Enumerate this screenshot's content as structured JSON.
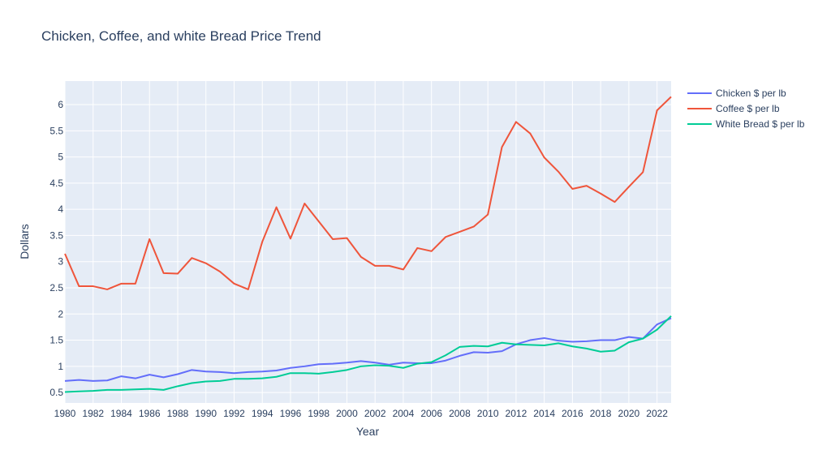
{
  "chart_data": {
    "type": "line",
    "title": "Chicken, Coffee, and white Bread Price Trend",
    "xlabel": "Year",
    "ylabel": "Dollars",
    "xlim": [
      1980,
      2023
    ],
    "ylim": [
      0.3,
      6.45
    ],
    "x_ticks": [
      1980,
      1982,
      1984,
      1986,
      1988,
      1990,
      1992,
      1994,
      1996,
      1998,
      2000,
      2002,
      2004,
      2006,
      2008,
      2010,
      2012,
      2014,
      2016,
      2018,
      2020,
      2022
    ],
    "y_ticks": [
      0.5,
      1,
      1.5,
      2,
      2.5,
      3,
      3.5,
      4,
      4.5,
      5,
      5.5,
      6
    ],
    "grid": true,
    "legend_position": "right",
    "x": [
      1980,
      1981,
      1982,
      1983,
      1984,
      1985,
      1986,
      1987,
      1988,
      1989,
      1990,
      1991,
      1992,
      1993,
      1994,
      1995,
      1996,
      1997,
      1998,
      1999,
      2000,
      2001,
      2002,
      2003,
      2004,
      2005,
      2006,
      2007,
      2008,
      2009,
      2010,
      2011,
      2012,
      2013,
      2014,
      2015,
      2016,
      2017,
      2018,
      2019,
      2020,
      2021,
      2022,
      2023
    ],
    "series": [
      {
        "name": "Chicken $ per lb",
        "color": "#636efa",
        "values": [
          0.72,
          0.74,
          0.72,
          0.73,
          0.81,
          0.77,
          0.84,
          0.79,
          0.85,
          0.93,
          0.9,
          0.89,
          0.87,
          0.89,
          0.9,
          0.92,
          0.97,
          1.0,
          1.04,
          1.05,
          1.07,
          1.1,
          1.07,
          1.03,
          1.07,
          1.06,
          1.06,
          1.11,
          1.2,
          1.27,
          1.26,
          1.29,
          1.42,
          1.5,
          1.54,
          1.49,
          1.47,
          1.48,
          1.5,
          1.5,
          1.56,
          1.53,
          1.8,
          1.92
        ]
      },
      {
        "name": "Coffee $ per lb",
        "color": "#ef553b",
        "values": [
          3.15,
          2.53,
          2.53,
          2.47,
          2.58,
          2.58,
          3.43,
          2.78,
          2.77,
          3.07,
          2.97,
          2.81,
          2.58,
          2.47,
          3.38,
          4.04,
          3.44,
          4.11,
          3.77,
          3.43,
          3.45,
          3.09,
          2.92,
          2.92,
          2.85,
          3.26,
          3.2,
          3.47,
          3.57,
          3.67,
          3.9,
          5.19,
          5.67,
          5.45,
          4.99,
          4.72,
          4.39,
          4.45,
          4.3,
          4.14,
          4.43,
          4.71,
          5.89,
          6.15
        ]
      },
      {
        "name": "White Bread $ per lb",
        "color": "#00cc96",
        "values": [
          0.51,
          0.52,
          0.53,
          0.55,
          0.55,
          0.56,
          0.57,
          0.55,
          0.62,
          0.68,
          0.71,
          0.72,
          0.76,
          0.76,
          0.77,
          0.8,
          0.87,
          0.87,
          0.86,
          0.89,
          0.93,
          1.0,
          1.02,
          1.01,
          0.97,
          1.05,
          1.08,
          1.21,
          1.37,
          1.39,
          1.38,
          1.45,
          1.42,
          1.41,
          1.4,
          1.44,
          1.38,
          1.34,
          1.28,
          1.3,
          1.46,
          1.53,
          1.7,
          1.96
        ]
      }
    ]
  }
}
